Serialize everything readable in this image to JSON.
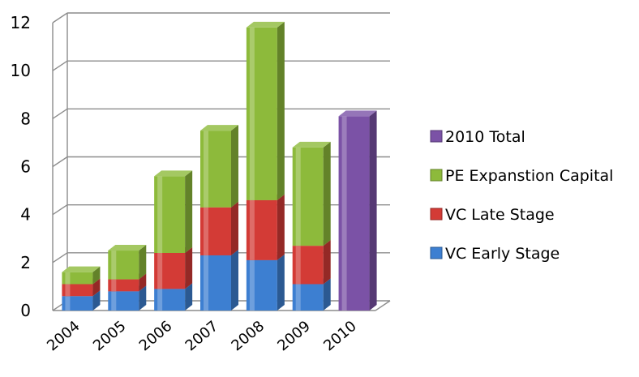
{
  "chart_data": {
    "type": "bar",
    "stacked": true,
    "three_d": true,
    "categories": [
      "2004",
      "2005",
      "2006",
      "2007",
      "2008",
      "2009",
      "2010"
    ],
    "series": [
      {
        "name": "VC Early Stage",
        "color": "#3d7fd1",
        "values": [
          0.6,
          0.8,
          0.9,
          2.3,
          2.1,
          1.1,
          0
        ]
      },
      {
        "name": "VC Late Stage",
        "color": "#d33b36",
        "values": [
          0.5,
          0.5,
          1.5,
          2.0,
          2.5,
          1.6,
          0
        ]
      },
      {
        "name": "PE Expanstion Capital",
        "color": "#8dba3b",
        "values": [
          0.5,
          1.2,
          3.2,
          3.2,
          7.2,
          4.1,
          0
        ]
      },
      {
        "name": "2010 Total",
        "color": "#7b52a6",
        "values": [
          0,
          0,
          0,
          0,
          0,
          0,
          8.1
        ]
      }
    ],
    "y_ticks": [
      "0",
      "2",
      "4",
      "6",
      "8",
      "10",
      "12"
    ],
    "ylim": [
      0,
      12
    ],
    "grid": true,
    "legend_position": "right",
    "legend_order": [
      "2010 Total",
      "PE Expanstion Capital",
      "VC Late Stage",
      "VC Early Stage"
    ]
  }
}
